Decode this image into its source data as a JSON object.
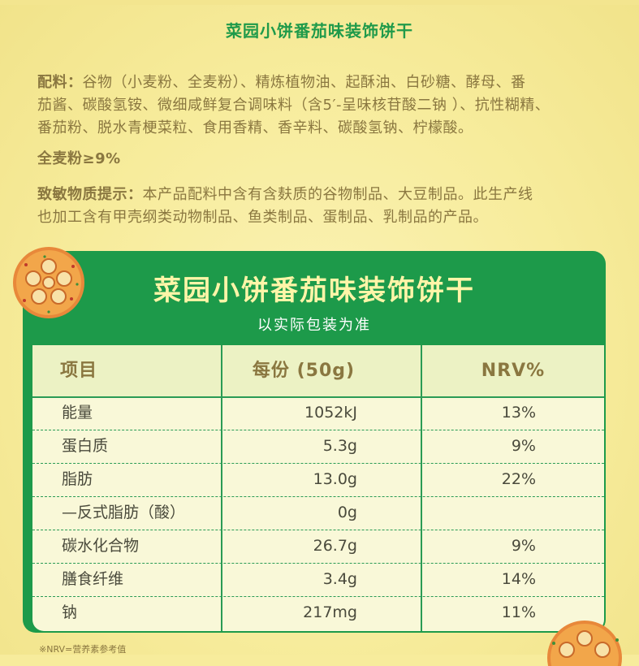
{
  "header": {
    "product_title": "菜园小饼番茄味装饰饼干"
  },
  "ingredients": {
    "label": "配料：",
    "lines": [
      "谷物（小麦粉、全麦粉）、精炼植物油、起酥油、白砂糖、酵母、番",
      "茄酱、碳酸氢铵、微细咸鲜复合调味料（含5′-呈味核苷酸二钠 ）、抗性糊精、",
      "番茄粉、脱水青梗菜粒、食用香精、香辛料、碳酸氢钠、柠檬酸。"
    ],
    "wheat_note": "全麦粉≥9%",
    "allergen_label": "致敏物质提示：",
    "allergen_lines": [
      "本产品配料中含有含麸质的谷物制品、大豆制品。此生产线",
      "也加工含有甲壳纲类动物制品、鱼类制品、蛋制品、乳制品的产品。"
    ]
  },
  "nutrition": {
    "title": "菜园小饼番茄味装饰饼干",
    "subtitle": "以实际包装为准",
    "headers": [
      "项目",
      "每份 (50g)",
      "NRV%"
    ],
    "rows": [
      {
        "name": "能量",
        "value": "1052kJ",
        "nrv": "13%"
      },
      {
        "name": "蛋白质",
        "value": "5.3g",
        "nrv": "9%"
      },
      {
        "name": "脂肪",
        "value": "13.0g",
        "nrv": "22%"
      },
      {
        "name": "—反式脂肪（酸）",
        "value": "0g",
        "nrv": ""
      },
      {
        "name": "碳水化合物",
        "value": "26.7g",
        "nrv": "9%"
      },
      {
        "name": "膳食纤维",
        "value": "3.4g",
        "nrv": "14%"
      },
      {
        "name": "钠",
        "value": "217mg",
        "nrv": "11%"
      }
    ],
    "footnote": "※NRV=营养素参考值"
  },
  "colors": {
    "background": "#f7ec9c",
    "brand_green": "#1d9a4a",
    "title_yellow": "#fff5a8",
    "text_brown": "#8a7740"
  }
}
